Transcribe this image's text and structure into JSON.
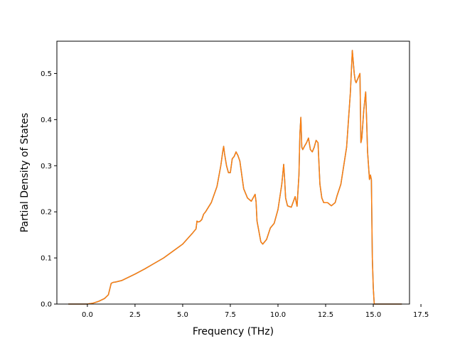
{
  "chart_data": {
    "type": "line",
    "title": "",
    "xlabel": "Frequency (THz)",
    "ylabel": "Partial Density of States",
    "xlim": [
      -1.6,
      16.9
    ],
    "ylim": [
      0.0,
      0.57
    ],
    "x_ticks": [
      0.0,
      2.5,
      5.0,
      7.5,
      10.0,
      12.5,
      15.0,
      17.5
    ],
    "x_tick_labels": [
      "0.0",
      "2.5",
      "5.0",
      "7.5",
      "10.0",
      "12.5",
      "15.0",
      "17.5"
    ],
    "y_ticks": [
      0.0,
      0.1,
      0.2,
      0.3,
      0.4,
      0.5
    ],
    "y_tick_labels": [
      "0.0",
      "0.1",
      "0.2",
      "0.3",
      "0.4",
      "0.5"
    ],
    "grid": false,
    "series": [
      {
        "color": "#1f77b4",
        "x": [
          -1.0,
          0.0,
          0.3,
          0.6,
          0.9,
          1.1,
          1.25,
          1.35,
          1.5,
          1.8,
          2.0,
          2.5,
          3.0,
          3.5,
          4.0,
          4.5,
          5.0,
          5.5,
          5.7,
          5.75,
          5.8,
          5.9,
          6.0,
          6.1,
          6.2,
          6.5,
          6.8,
          7.0,
          7.1,
          7.15,
          7.2,
          7.3,
          7.4,
          7.5,
          7.6,
          7.7,
          7.8,
          7.9,
          8.0,
          8.2,
          8.4,
          8.6,
          8.8,
          8.85,
          8.9,
          9.1,
          9.2,
          9.4,
          9.6,
          9.8,
          10.0,
          10.2,
          10.3,
          10.35,
          10.4,
          10.5,
          10.7,
          10.9,
          11.0,
          11.1,
          11.15,
          11.2,
          11.25,
          11.3,
          11.4,
          11.5,
          11.6,
          11.7,
          11.8,
          11.9,
          12.0,
          12.1,
          12.2,
          12.3,
          12.4,
          12.6,
          12.8,
          13.0,
          13.1,
          13.3,
          13.6,
          13.8,
          13.9,
          14.0,
          14.05,
          14.1,
          14.2,
          14.3,
          14.35,
          14.4,
          14.5,
          14.6,
          14.65,
          14.7,
          14.8,
          14.85,
          14.9,
          14.95,
          15.0,
          15.05,
          15.1,
          15.2,
          15.3,
          15.5,
          16.0,
          16.5
        ],
        "y": [
          0.0,
          0.0,
          0.002,
          0.006,
          0.012,
          0.02,
          0.045,
          0.047,
          0.048,
          0.051,
          0.055,
          0.065,
          0.076,
          0.088,
          0.1,
          0.115,
          0.13,
          0.153,
          0.163,
          0.18,
          0.178,
          0.179,
          0.183,
          0.195,
          0.2,
          0.22,
          0.255,
          0.3,
          0.33,
          0.342,
          0.325,
          0.3,
          0.285,
          0.285,
          0.315,
          0.32,
          0.33,
          0.322,
          0.31,
          0.25,
          0.23,
          0.223,
          0.238,
          0.222,
          0.18,
          0.135,
          0.13,
          0.14,
          0.165,
          0.175,
          0.205,
          0.26,
          0.303,
          0.27,
          0.23,
          0.213,
          0.21,
          0.233,
          0.212,
          0.28,
          0.37,
          0.405,
          0.34,
          0.335,
          0.343,
          0.35,
          0.36,
          0.335,
          0.33,
          0.34,
          0.355,
          0.35,
          0.26,
          0.23,
          0.22,
          0.22,
          0.213,
          0.22,
          0.235,
          0.26,
          0.34,
          0.46,
          0.55,
          0.5,
          0.485,
          0.48,
          0.49,
          0.5,
          0.35,
          0.36,
          0.42,
          0.46,
          0.4,
          0.33,
          0.27,
          0.28,
          0.27,
          0.1,
          0.035,
          0.0,
          0.0,
          0.0,
          0.0,
          0.0,
          0.0,
          0.0
        ]
      },
      {
        "color": "#ff7f0e",
        "x": [
          -1.0,
          0.0,
          0.3,
          0.6,
          0.9,
          1.1,
          1.25,
          1.35,
          1.5,
          1.8,
          2.0,
          2.5,
          3.0,
          3.5,
          4.0,
          4.5,
          5.0,
          5.5,
          5.7,
          5.75,
          5.8,
          5.9,
          6.0,
          6.1,
          6.2,
          6.5,
          6.8,
          7.0,
          7.1,
          7.15,
          7.2,
          7.3,
          7.4,
          7.5,
          7.6,
          7.7,
          7.8,
          7.9,
          8.0,
          8.2,
          8.4,
          8.6,
          8.8,
          8.85,
          8.9,
          9.1,
          9.2,
          9.4,
          9.6,
          9.8,
          10.0,
          10.2,
          10.3,
          10.35,
          10.4,
          10.5,
          10.7,
          10.9,
          11.0,
          11.1,
          11.15,
          11.2,
          11.25,
          11.3,
          11.4,
          11.5,
          11.6,
          11.7,
          11.8,
          11.9,
          12.0,
          12.1,
          12.2,
          12.3,
          12.4,
          12.6,
          12.8,
          13.0,
          13.1,
          13.3,
          13.6,
          13.8,
          13.9,
          14.0,
          14.05,
          14.1,
          14.2,
          14.3,
          14.35,
          14.4,
          14.5,
          14.6,
          14.65,
          14.7,
          14.8,
          14.85,
          14.9,
          14.95,
          15.0,
          15.05,
          15.1,
          15.2,
          15.3,
          15.5,
          16.0,
          16.5
        ],
        "y": [
          0.0,
          0.0,
          0.002,
          0.006,
          0.012,
          0.02,
          0.045,
          0.047,
          0.048,
          0.051,
          0.055,
          0.065,
          0.076,
          0.088,
          0.1,
          0.115,
          0.13,
          0.153,
          0.163,
          0.18,
          0.178,
          0.179,
          0.183,
          0.195,
          0.2,
          0.22,
          0.255,
          0.3,
          0.33,
          0.342,
          0.325,
          0.3,
          0.285,
          0.285,
          0.315,
          0.32,
          0.33,
          0.322,
          0.31,
          0.25,
          0.23,
          0.223,
          0.238,
          0.222,
          0.18,
          0.135,
          0.13,
          0.14,
          0.165,
          0.175,
          0.205,
          0.26,
          0.303,
          0.27,
          0.23,
          0.213,
          0.21,
          0.233,
          0.212,
          0.28,
          0.37,
          0.405,
          0.34,
          0.335,
          0.343,
          0.35,
          0.36,
          0.335,
          0.33,
          0.34,
          0.355,
          0.35,
          0.26,
          0.23,
          0.22,
          0.22,
          0.213,
          0.22,
          0.235,
          0.26,
          0.34,
          0.46,
          0.55,
          0.5,
          0.485,
          0.48,
          0.49,
          0.5,
          0.35,
          0.36,
          0.42,
          0.46,
          0.4,
          0.33,
          0.27,
          0.28,
          0.27,
          0.1,
          0.035,
          0.0,
          0.0,
          0.0,
          0.0,
          0.0,
          0.0,
          0.0
        ]
      }
    ]
  }
}
